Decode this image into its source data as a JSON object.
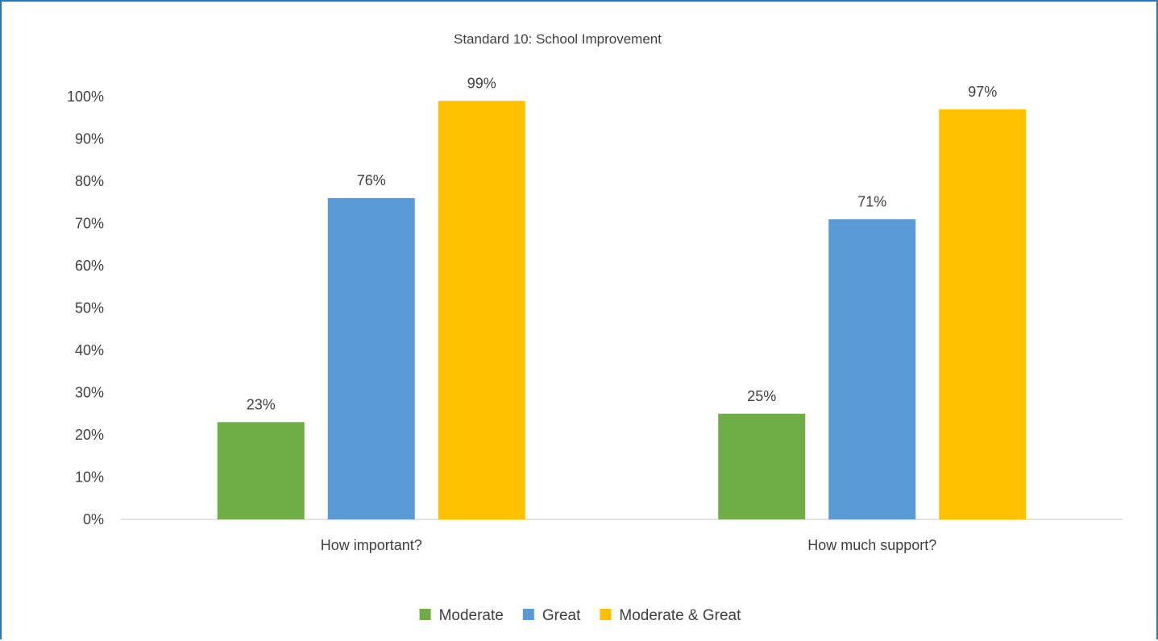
{
  "chart_data": {
    "type": "bar",
    "title": "Standard 10:  School Improvement",
    "categories": [
      "How important?",
      "How much support?"
    ],
    "series": [
      {
        "name": "Moderate",
        "color": "#70ad47",
        "values": [
          23,
          25
        ],
        "labels": [
          "23%",
          "25%"
        ]
      },
      {
        "name": "Great",
        "color": "#5b9bd5",
        "values": [
          76,
          71
        ],
        "labels": [
          "76%",
          "71%"
        ]
      },
      {
        "name": "Moderate & Great",
        "color": "#ffc000",
        "values": [
          99,
          97
        ],
        "labels": [
          "99%",
          "97%"
        ]
      }
    ],
    "ylim": [
      0,
      100
    ],
    "yticks": [
      "0%",
      "10%",
      "20%",
      "30%",
      "40%",
      "50%",
      "60%",
      "70%",
      "80%",
      "90%",
      "100%"
    ],
    "xlabel": "",
    "ylabel": "",
    "grid": false,
    "legend": "bottom"
  }
}
